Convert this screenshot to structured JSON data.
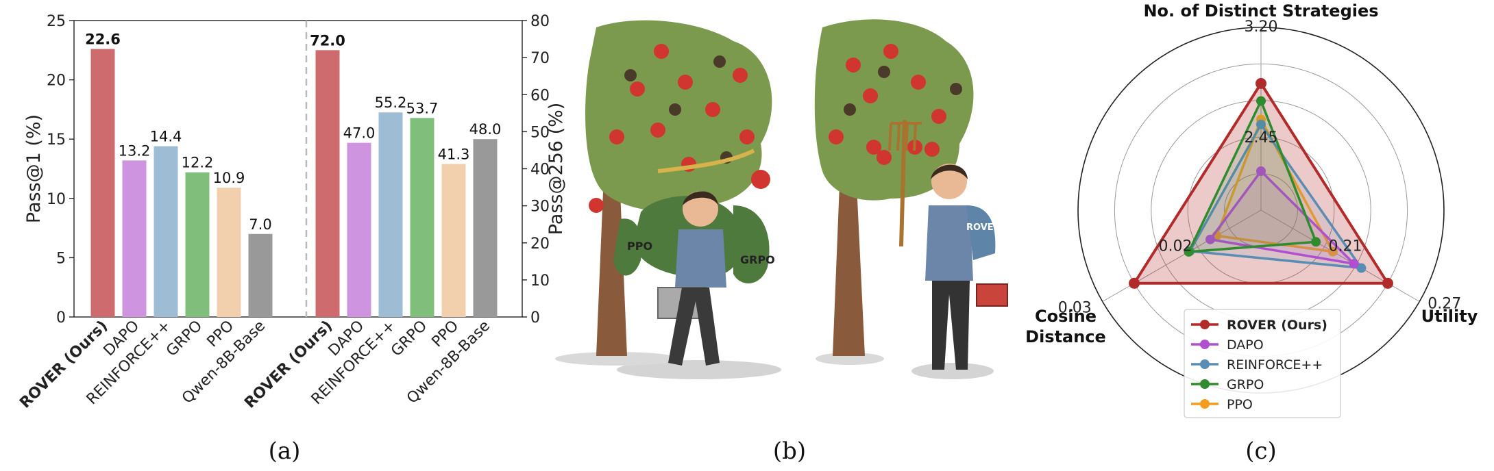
{
  "captions": [
    "(a)",
    "(b)",
    "(c)"
  ],
  "chart_data": [
    {
      "type": "bar",
      "categories": [
        "ROVER (Ours)",
        "DAPO",
        "REINFORCE++",
        "GRPO",
        "PPO",
        "Qwen-8B-Base"
      ],
      "values": [
        22.6,
        13.2,
        14.4,
        12.2,
        10.9,
        7.0
      ],
      "value_labels": [
        "22.6",
        "13.2",
        "14.4",
        "12.2",
        "10.9",
        "7.0"
      ],
      "ylabel": "Pass@1 (%)",
      "ylim": [
        0,
        25
      ],
      "yticks": [
        "0",
        "5",
        "10",
        "15",
        "20",
        "25"
      ],
      "colors": [
        "#cd6b6e",
        "#cf94e0",
        "#9ebdd5",
        "#7fbf7b",
        "#f2d0ae",
        "#999999"
      ]
    },
    {
      "type": "bar",
      "categories": [
        "ROVER (Ours)",
        "DAPO",
        "REINFORCE++",
        "GRPO",
        "PPO",
        "Qwen-8B-Base"
      ],
      "values": [
        72.0,
        47.0,
        55.2,
        53.7,
        41.3,
        48.0
      ],
      "value_labels": [
        "72.0",
        "47.0",
        "55.2",
        "53.7",
        "41.3",
        "48.0"
      ],
      "ylabel": "Pass@256 (%)",
      "ylim": [
        0,
        80
      ],
      "yticks": [
        "0",
        "10",
        "20",
        "30",
        "40",
        "50",
        "60",
        "70",
        "80"
      ],
      "colors": [
        "#cd6b6e",
        "#cf94e0",
        "#9ebdd5",
        "#7fbf7b",
        "#f2d0ae",
        "#999999"
      ]
    },
    {
      "type": "radar",
      "axes": [
        {
          "label": "No. of Distinct Strategies",
          "range": [
            1.7,
            3.2
          ],
          "ticks": [
            "2.45",
            "3.20"
          ]
        },
        {
          "label": "Utility",
          "range": [
            0.15,
            0.27
          ],
          "ticks": [
            "0.21",
            "0.27"
          ]
        },
        {
          "label": "Cosine\nDistance",
          "range": [
            0.01,
            0.03
          ],
          "ticks": [
            "0.02",
            "0.03"
          ]
        }
      ],
      "series": [
        {
          "name": "ROVER (Ours)",
          "color": "#b22b2b",
          "values": [
            3.0,
            0.27,
            0.03
          ]
        },
        {
          "name": "DAPO",
          "color": "#b04fcf",
          "values": [
            2.1,
            0.238,
            0.018
          ]
        },
        {
          "name": "REINFORCE++",
          "color": "#5a8db3",
          "values": [
            2.58,
            0.245,
            0.0212
          ]
        },
        {
          "name": "GRPO",
          "color": "#2e8b2e",
          "values": [
            2.82,
            0.202,
            0.0214
          ]
        },
        {
          "name": "PPO",
          "color": "#f39c1e",
          "values": [
            2.63,
            0.218,
            0.017
          ]
        }
      ]
    }
  ]
}
